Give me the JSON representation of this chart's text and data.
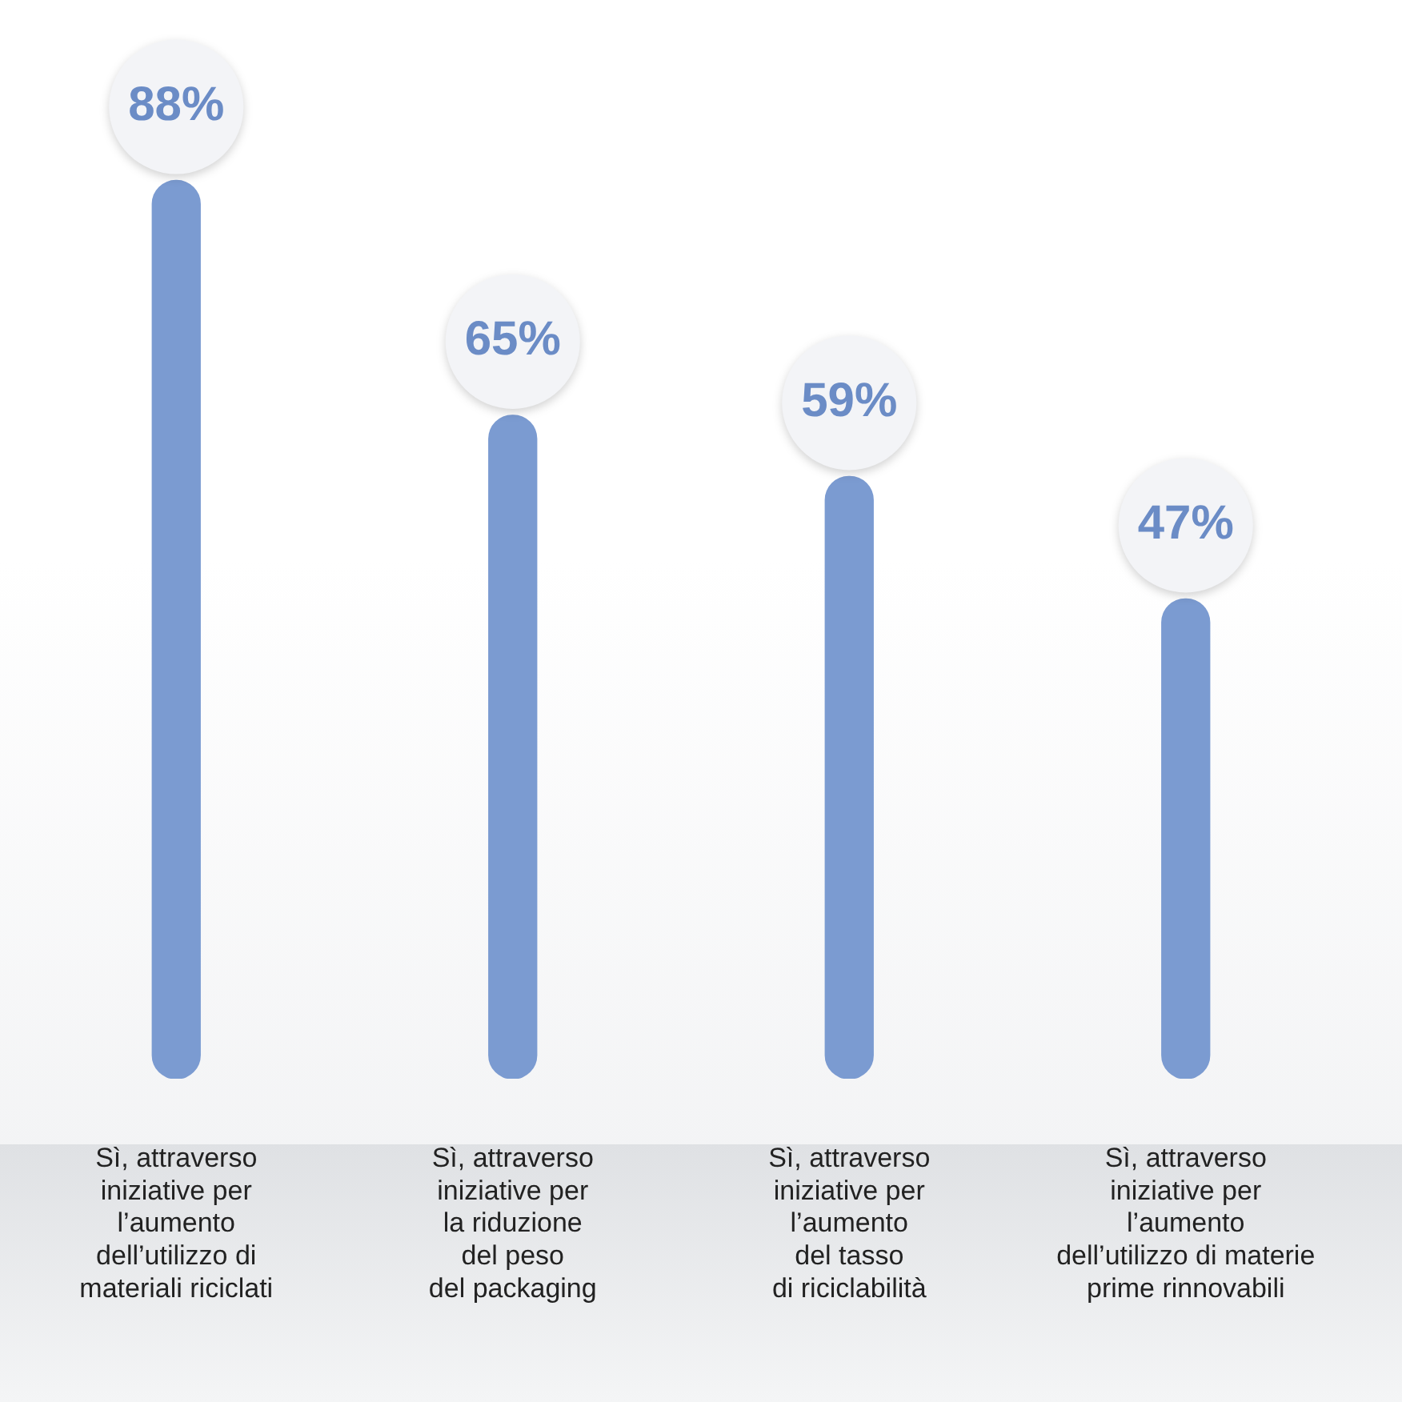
{
  "chart_data": {
    "type": "bar",
    "categories": [
      "Sì, attraverso\niniziative per\nl’aumento\ndell’utilizzo di\nmateriali riciclati",
      "Sì, attraverso\niniziative per\nla riduzione\ndel peso\ndel packaging",
      "Sì, attraverso\niniziative per\nl’aumento\ndel tasso\ndi riciclabilità",
      "Sì, attraverso\niniziative per\nl’aumento\ndell’utilizzo di materie\nprime rinnovabili"
    ],
    "values": [
      88,
      65,
      59,
      47
    ],
    "value_labels": [
      "88%",
      "65%",
      "59%",
      "47%"
    ],
    "color": "#7b9bd1",
    "grid": false,
    "legend": false
  }
}
